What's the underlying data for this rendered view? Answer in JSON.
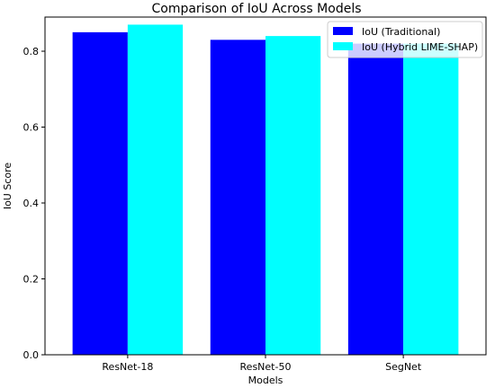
{
  "chart_data": {
    "type": "bar",
    "title": "Comparison of IoU Across Models",
    "xlabel": "Models",
    "ylabel": "IoU Score",
    "categories": [
      "ResNet-18",
      "ResNet-50",
      "SegNet"
    ],
    "series": [
      {
        "name": "IoU (Traditional)",
        "color": "#0000ff",
        "values": [
          0.85,
          0.83,
          0.82
        ]
      },
      {
        "name": "IoU (Hybrid LIME-SHAP)",
        "color": "#00ffff",
        "values": [
          0.87,
          0.84,
          0.82
        ]
      }
    ],
    "ylim": [
      0,
      0.89
    ],
    "yticks": [
      0.0,
      0.2,
      0.4,
      0.6,
      0.8
    ],
    "ytick_labels": [
      "0.0",
      "0.2",
      "0.4",
      "0.6",
      "0.8"
    ],
    "legend_position": "top-right",
    "grid": false
  }
}
